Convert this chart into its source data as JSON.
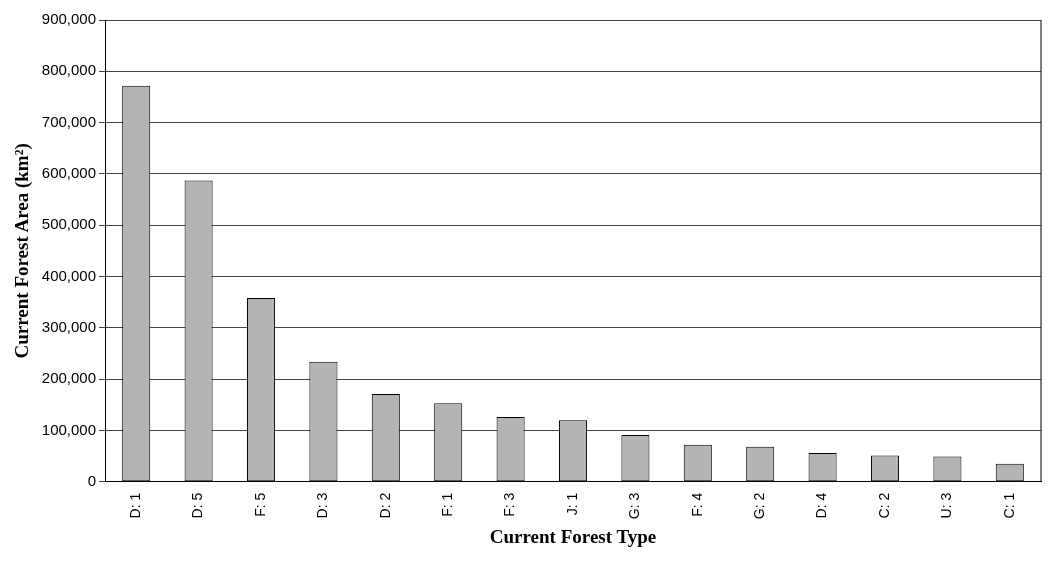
{
  "chart_data": {
    "type": "bar",
    "xlabel": "Current Forest Type",
    "ylabel": "Current Forest Area (km²)",
    "categories": [
      "D: 1",
      "D: 5",
      "F: 5",
      "D: 3",
      "D: 2",
      "F: 1",
      "F: 3",
      "J: 1",
      "G: 3",
      "F: 4",
      "G: 2",
      "D: 4",
      "C: 2",
      "U: 3",
      "C: 1"
    ],
    "values": [
      772000,
      587000,
      358000,
      234000,
      171000,
      153000,
      126000,
      120000,
      91000,
      72000,
      68000,
      56000,
      51000,
      49000,
      35000
    ],
    "color": "#b4b4b4",
    "ylim": [
      0,
      900000
    ],
    "yticks": [
      0,
      {
        "value": 100000,
        "label": "100,000"
      },
      {
        "value": 200000,
        "label": "200,000"
      },
      {
        "value": 300000,
        "label": "300,000"
      },
      {
        "value": 400000,
        "label": "400,000"
      },
      {
        "value": 500000,
        "label": "500,000"
      },
      {
        "value": 600000,
        "label": "600,000"
      },
      {
        "value": 700000,
        "label": "700,000"
      },
      {
        "value": 800000,
        "label": "800,000"
      },
      {
        "value": 900000,
        "label": "900,000"
      }
    ],
    "grid": "y",
    "legend": false
  }
}
